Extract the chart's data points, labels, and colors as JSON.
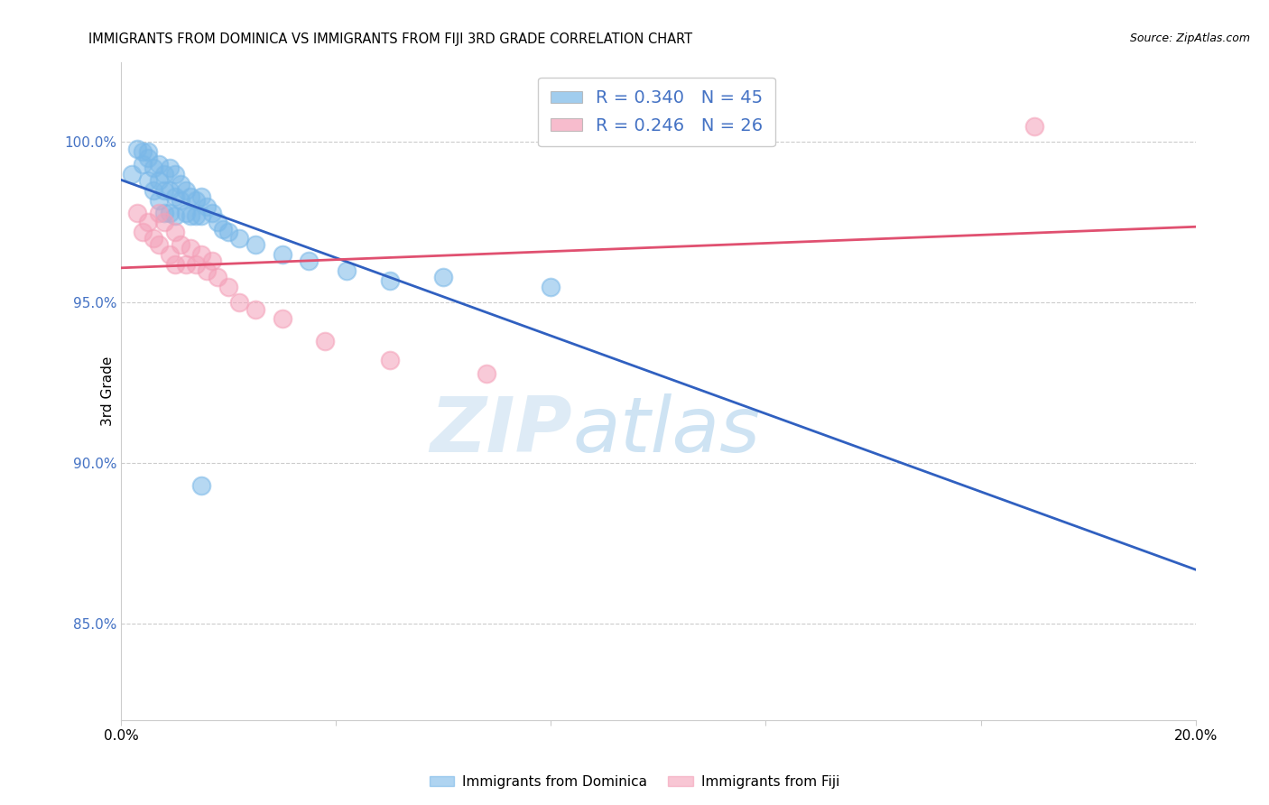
{
  "title": "IMMIGRANTS FROM DOMINICA VS IMMIGRANTS FROM FIJI 3RD GRADE CORRELATION CHART",
  "source": "Source: ZipAtlas.com",
  "ylabel": "3rd Grade",
  "xmin": 0.0,
  "xmax": 0.2,
  "ymin": 0.82,
  "ymax": 1.025,
  "yticks": [
    0.85,
    0.9,
    0.95,
    1.0
  ],
  "ytick_labels": [
    "85.0%",
    "90.0%",
    "95.0%",
    "100.0%"
  ],
  "xticks": [
    0.0,
    0.04,
    0.08,
    0.12,
    0.16,
    0.2
  ],
  "xtick_labels": [
    "0.0%",
    "",
    "",
    "",
    "",
    "20.0%"
  ],
  "dominica_R": 0.34,
  "dominica_N": 45,
  "fiji_R": 0.246,
  "fiji_N": 26,
  "dominica_color": "#7ab8e8",
  "fiji_color": "#f4a0b8",
  "dominica_line_color": "#3060c0",
  "fiji_line_color": "#e05070",
  "dominica_x": [
    0.002,
    0.003,
    0.004,
    0.004,
    0.005,
    0.005,
    0.005,
    0.006,
    0.006,
    0.007,
    0.007,
    0.007,
    0.008,
    0.008,
    0.008,
    0.009,
    0.009,
    0.009,
    0.01,
    0.01,
    0.01,
    0.011,
    0.011,
    0.012,
    0.012,
    0.013,
    0.013,
    0.014,
    0.014,
    0.015,
    0.015,
    0.016,
    0.017,
    0.018,
    0.019,
    0.02,
    0.022,
    0.025,
    0.03,
    0.035,
    0.042,
    0.05,
    0.06,
    0.08,
    0.015
  ],
  "dominica_y": [
    0.99,
    0.998,
    0.997,
    0.993,
    0.997,
    0.995,
    0.988,
    0.992,
    0.985,
    0.993,
    0.988,
    0.982,
    0.99,
    0.985,
    0.978,
    0.992,
    0.985,
    0.978,
    0.99,
    0.983,
    0.977,
    0.987,
    0.982,
    0.985,
    0.978,
    0.983,
    0.977,
    0.982,
    0.977,
    0.983,
    0.977,
    0.98,
    0.978,
    0.975,
    0.973,
    0.972,
    0.97,
    0.968,
    0.965,
    0.963,
    0.96,
    0.957,
    0.958,
    0.955,
    0.893
  ],
  "fiji_x": [
    0.003,
    0.004,
    0.005,
    0.006,
    0.007,
    0.007,
    0.008,
    0.009,
    0.01,
    0.01,
    0.011,
    0.012,
    0.013,
    0.014,
    0.015,
    0.016,
    0.017,
    0.018,
    0.02,
    0.022,
    0.025,
    0.03,
    0.038,
    0.05,
    0.068,
    0.17
  ],
  "fiji_y": [
    0.978,
    0.972,
    0.975,
    0.97,
    0.978,
    0.968,
    0.975,
    0.965,
    0.972,
    0.962,
    0.968,
    0.962,
    0.967,
    0.962,
    0.965,
    0.96,
    0.963,
    0.958,
    0.955,
    0.95,
    0.948,
    0.945,
    0.938,
    0.932,
    0.928,
    1.005
  ],
  "watermark_zip": "ZIP",
  "watermark_atlas": "atlas"
}
